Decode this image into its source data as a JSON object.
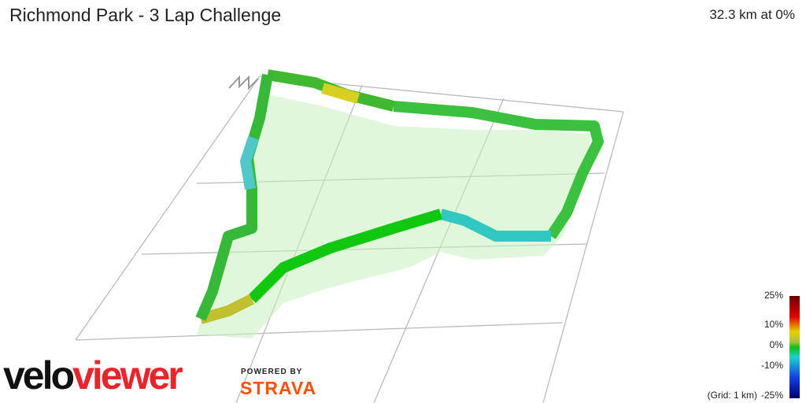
{
  "header": {
    "title": "Richmond Park - 3 Lap Challenge",
    "summary": "32.3 km at 0%"
  },
  "legend": {
    "labels": [
      "25%",
      "10%",
      "0%",
      "-10%",
      "-25%"
    ],
    "grid_note": "(Grid: 1 km)"
  },
  "branding": {
    "logo_part1": "velo",
    "logo_part2": "viewer",
    "powered_by": "POWERED BY",
    "partner": "STRAVA"
  }
}
